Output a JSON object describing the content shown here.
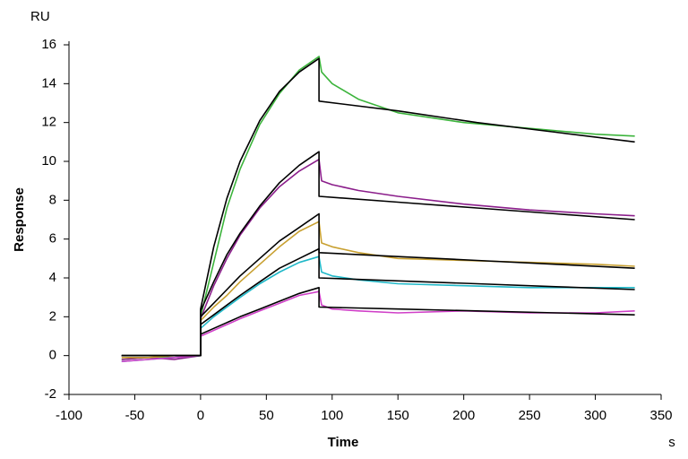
{
  "chart_data": {
    "type": "line",
    "y_unit": "RU",
    "ylabel": "Response",
    "xlabel": "Time",
    "x_unit": "s",
    "xlim": [
      -100,
      350
    ],
    "xticks": [
      -100,
      -50,
      0,
      50,
      100,
      150,
      200,
      250,
      300,
      350
    ],
    "ylim": [
      -2,
      16
    ],
    "yticks": [
      -2,
      0,
      2,
      4,
      6,
      8,
      10,
      12,
      14,
      16
    ],
    "grid": false,
    "series": [
      {
        "color": "#3cb43c",
        "x": [
          -60,
          -40,
          -20,
          0,
          0,
          10,
          20,
          30,
          45,
          60,
          75,
          90,
          92,
          100,
          120,
          150,
          200,
          250,
          300,
          330
        ],
        "values": [
          -0.2,
          -0.1,
          -0.1,
          0,
          2.0,
          4.8,
          7.6,
          9.6,
          11.9,
          13.5,
          14.7,
          15.4,
          14.6,
          14.0,
          13.2,
          12.5,
          12.0,
          11.7,
          11.4,
          11.3
        ]
      },
      {
        "color": "#8b1e8b",
        "x": [
          -60,
          -40,
          -20,
          0,
          0,
          10,
          20,
          30,
          45,
          60,
          75,
          90,
          92,
          100,
          120,
          150,
          200,
          250,
          300,
          330
        ],
        "values": [
          -0.2,
          -0.1,
          -0.2,
          0,
          1.9,
          3.6,
          5.0,
          6.2,
          7.6,
          8.7,
          9.5,
          10.1,
          9.0,
          8.8,
          8.5,
          8.2,
          7.8,
          7.5,
          7.3,
          7.2
        ]
      },
      {
        "color": "#c8a030",
        "x": [
          -60,
          -40,
          -20,
          0,
          0,
          10,
          20,
          30,
          45,
          60,
          75,
          90,
          92,
          100,
          120,
          150,
          200,
          250,
          300,
          330
        ],
        "values": [
          -0.1,
          -0.1,
          0,
          0,
          1.8,
          2.5,
          3.1,
          3.8,
          4.7,
          5.6,
          6.4,
          6.9,
          5.8,
          5.6,
          5.3,
          5.0,
          4.9,
          4.8,
          4.7,
          4.6
        ]
      },
      {
        "color": "#20b8c8",
        "x": [
          -60,
          -40,
          -20,
          0,
          0,
          10,
          20,
          30,
          45,
          60,
          75,
          90,
          92,
          100,
          120,
          150,
          200,
          250,
          300,
          330
        ],
        "values": [
          -0.3,
          -0.2,
          -0.1,
          0,
          1.4,
          2.0,
          2.5,
          3.0,
          3.7,
          4.3,
          4.8,
          5.1,
          4.3,
          4.1,
          3.9,
          3.7,
          3.6,
          3.5,
          3.5,
          3.5
        ]
      },
      {
        "color": "#d040c8",
        "x": [
          -60,
          -40,
          -20,
          0,
          0,
          10,
          20,
          30,
          45,
          60,
          75,
          90,
          92,
          100,
          120,
          150,
          200,
          250,
          300,
          330
        ],
        "values": [
          -0.3,
          -0.2,
          -0.1,
          0,
          1.0,
          1.3,
          1.6,
          1.9,
          2.3,
          2.7,
          3.1,
          3.3,
          2.6,
          2.4,
          2.3,
          2.2,
          2.3,
          2.2,
          2.2,
          2.3
        ]
      },
      {
        "color": "#000000",
        "x": [
          -60,
          0,
          0,
          10,
          20,
          30,
          45,
          60,
          75,
          90,
          90,
          150,
          210,
          270,
          330
        ],
        "values": [
          0,
          0,
          2.4,
          5.6,
          8.1,
          10.0,
          12.1,
          13.6,
          14.6,
          15.3,
          13.1,
          12.6,
          12.0,
          11.5,
          11.0
        ]
      },
      {
        "color": "#000000",
        "x": [
          -60,
          0,
          0,
          10,
          20,
          30,
          45,
          60,
          75,
          90,
          90,
          150,
          210,
          270,
          330
        ],
        "values": [
          0,
          0,
          2.3,
          3.8,
          5.2,
          6.3,
          7.7,
          8.9,
          9.8,
          10.5,
          8.2,
          7.9,
          7.6,
          7.3,
          7.0
        ]
      },
      {
        "color": "#000000",
        "x": [
          -60,
          0,
          0,
          10,
          20,
          30,
          45,
          60,
          75,
          90,
          90,
          150,
          210,
          270,
          330
        ],
        "values": [
          0,
          0,
          2.0,
          2.7,
          3.4,
          4.1,
          5.0,
          5.9,
          6.6,
          7.3,
          5.3,
          5.1,
          4.9,
          4.7,
          4.5
        ]
      },
      {
        "color": "#000000",
        "x": [
          -60,
          0,
          0,
          10,
          20,
          30,
          45,
          60,
          75,
          90,
          90,
          150,
          210,
          270,
          330
        ],
        "values": [
          0,
          0,
          1.6,
          2.1,
          2.6,
          3.1,
          3.8,
          4.5,
          5.0,
          5.5,
          4.0,
          3.85,
          3.7,
          3.55,
          3.4
        ]
      },
      {
        "color": "#000000",
        "x": [
          -60,
          0,
          0,
          10,
          20,
          30,
          45,
          60,
          75,
          90,
          90,
          150,
          210,
          270,
          330
        ],
        "values": [
          0,
          0,
          1.1,
          1.4,
          1.7,
          2.0,
          2.4,
          2.8,
          3.2,
          3.5,
          2.5,
          2.4,
          2.3,
          2.2,
          2.1
        ]
      }
    ]
  }
}
